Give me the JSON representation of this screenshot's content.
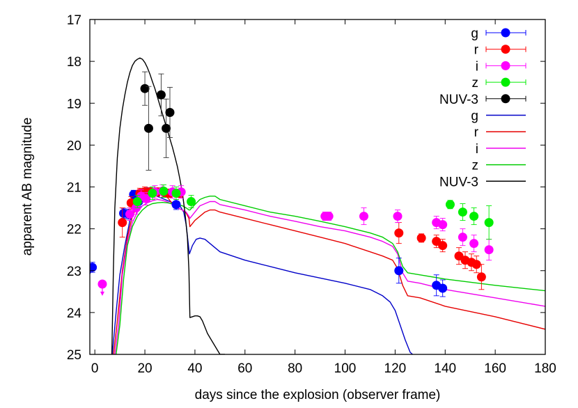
{
  "chart_data": {
    "type": "scatter",
    "title": "",
    "xlabel": "days since the explosion (observer frame)",
    "ylabel": "apparent AB magnitude",
    "xlim": [
      -2,
      180
    ],
    "ylim": [
      25,
      17
    ],
    "y_inverted": true,
    "x_ticks": [
      0,
      20,
      40,
      60,
      80,
      100,
      120,
      140,
      160,
      180
    ],
    "x_tick_labels": [
      "0",
      "20",
      "40",
      "60",
      "80",
      "100",
      "120",
      "140",
      "160",
      "180"
    ],
    "y_ticks": [
      17,
      18,
      19,
      20,
      21,
      22,
      23,
      24,
      25
    ],
    "y_tick_labels": [
      "17",
      "18",
      "19",
      "20",
      "21",
      "22",
      "23",
      "24",
      "25"
    ],
    "grid": false,
    "legend_position": "top-right",
    "colors": {
      "g": "#0000ff",
      "r": "#ff0000",
      "i": "#ff00ff",
      "z": "#00ee00",
      "NUV-3": "#000000",
      "g_line": "#0000c8",
      "r_line": "#e60000",
      "i_line": "#ee00ee",
      "z_line": "#00cc00",
      "nuv_line": "#000000"
    },
    "points": [
      {
        "name": "g",
        "color_key": "g",
        "data": [
          [
            -1,
            22.92,
            0.12
          ],
          [
            11.5,
            21.63,
            0.12
          ],
          [
            13.5,
            21.65,
            0.12
          ],
          [
            15.5,
            21.18,
            0.1
          ],
          [
            17.5,
            21.35,
            0.12
          ],
          [
            19.5,
            21.15,
            0.1
          ],
          [
            21.5,
            21.12,
            0.1
          ],
          [
            32.5,
            21.42,
            0.12
          ],
          [
            121.5,
            23.0,
            0.3
          ],
          [
            136.5,
            23.35,
            0.25
          ],
          [
            139,
            23.42,
            0.2
          ]
        ]
      },
      {
        "name": "r",
        "color_key": "r",
        "data": [
          [
            11,
            21.85,
            0.35
          ],
          [
            14.5,
            21.38,
            0.15
          ],
          [
            18,
            21.15,
            0.12
          ],
          [
            20,
            21.12,
            0.12
          ],
          [
            22,
            21.12,
            0.1
          ],
          [
            25,
            21.12,
            0.1
          ],
          [
            28,
            21.15,
            0.1
          ],
          [
            30,
            21.15,
            0.1
          ],
          [
            34,
            21.15,
            0.1
          ],
          [
            121.5,
            22.1,
            0.25
          ],
          [
            130.5,
            22.22,
            0.1
          ],
          [
            136.5,
            22.3,
            0.15
          ],
          [
            139,
            22.4,
            0.15
          ],
          [
            145.5,
            22.65,
            0.2
          ],
          [
            148,
            22.75,
            0.2
          ],
          [
            150.5,
            22.8,
            0.2
          ],
          [
            152.5,
            22.85,
            0.2
          ],
          [
            154.5,
            23.15,
            0.3
          ]
        ]
      },
      {
        "name": "i",
        "color_key": "i",
        "data": [
          [
            3,
            23.32,
            0.0
          ],
          [
            14,
            21.65,
            0.15
          ],
          [
            16.5,
            21.5,
            0.15
          ],
          [
            18.5,
            21.22,
            0.15
          ],
          [
            20.5,
            21.28,
            0.15
          ],
          [
            24,
            21.12,
            0.15
          ],
          [
            27,
            21.1,
            0.15
          ],
          [
            31,
            21.12,
            0.15
          ],
          [
            34.5,
            21.12,
            0.15
          ],
          [
            92,
            21.7,
            0.1
          ],
          [
            93.5,
            21.7,
            0.1
          ],
          [
            107.5,
            21.7,
            0.2
          ],
          [
            121,
            21.7,
            0.15
          ],
          [
            136.5,
            21.85,
            0.15
          ],
          [
            139,
            21.9,
            0.15
          ],
          [
            147,
            22.2,
            0.2
          ],
          [
            151.5,
            22.35,
            0.2
          ],
          [
            157.5,
            22.5,
            0.25
          ]
        ]
      },
      {
        "name": "z",
        "color_key": "z",
        "data": [
          [
            17,
            21.35,
            0.15
          ],
          [
            23,
            21.15,
            0.15
          ],
          [
            27.5,
            21.1,
            0.15
          ],
          [
            32.5,
            21.15,
            0.15
          ],
          [
            38.5,
            21.35,
            0.15
          ],
          [
            142,
            21.42,
            0.1
          ],
          [
            147,
            21.6,
            0.2
          ],
          [
            151.5,
            21.7,
            0.2
          ],
          [
            157.5,
            21.85,
            0.4
          ]
        ]
      },
      {
        "name": "NUV-3",
        "color_key": "NUV-3",
        "data": [
          [
            20,
            18.65,
            0.4
          ],
          [
            21.5,
            19.6,
            1.0
          ],
          [
            26.5,
            18.8,
            0.5
          ],
          [
            28.5,
            19.6,
            0.7
          ],
          [
            30,
            19.22,
            0.6
          ]
        ]
      }
    ],
    "upper_limits": [
      [
        -2,
        23.05,
        "g"
      ],
      [
        3,
        23.55,
        "i"
      ]
    ],
    "series": [
      {
        "name": "g",
        "color_key": "g_line",
        "x": [
          7,
          8.5,
          10,
          12,
          14,
          16,
          18,
          20,
          22,
          24,
          26,
          28,
          30,
          32,
          34,
          35.5,
          36.5,
          37.6,
          37.8,
          39,
          40.5,
          42,
          44,
          50,
          60,
          80,
          100,
          110,
          115,
          118,
          120,
          122,
          124,
          126,
          127
        ],
        "values": [
          25,
          24.0,
          23.1,
          22.4,
          21.8,
          21.5,
          21.3,
          21.2,
          21.15,
          21.2,
          21.25,
          21.3,
          21.35,
          21.4,
          21.45,
          21.6,
          21.9,
          22.5,
          22.6,
          22.4,
          22.25,
          22.22,
          22.25,
          22.55,
          22.75,
          23.05,
          23.3,
          23.45,
          23.6,
          23.75,
          23.95,
          24.3,
          24.65,
          24.95,
          25
        ]
      },
      {
        "name": "r",
        "color_key": "r_line",
        "x": [
          7.5,
          9,
          11,
          13,
          15,
          17,
          19,
          21,
          23,
          25,
          27,
          29,
          31,
          33,
          35,
          36.5,
          37.6,
          38,
          40,
          42,
          44,
          46,
          48,
          50,
          60,
          70,
          80,
          90,
          100,
          110,
          115,
          119,
          121,
          123,
          125,
          130,
          140,
          160,
          180
        ],
        "values": [
          25,
          24.2,
          23.0,
          22.2,
          21.7,
          21.45,
          21.3,
          21.2,
          21.12,
          21.1,
          21.15,
          21.25,
          21.4,
          21.5,
          21.55,
          21.62,
          21.75,
          21.95,
          21.8,
          21.7,
          21.6,
          21.55,
          21.55,
          21.6,
          21.75,
          21.9,
          22.05,
          22.2,
          22.35,
          22.55,
          22.65,
          22.75,
          22.95,
          23.35,
          23.6,
          23.65,
          23.85,
          24.1,
          24.4
        ]
      },
      {
        "name": "i",
        "color_key": "i_line",
        "x": [
          8,
          9.5,
          11,
          13,
          15,
          17,
          19,
          21,
          23,
          25,
          27,
          29,
          31,
          33,
          35,
          36.5,
          37.6,
          38,
          40,
          42,
          44,
          46,
          48,
          50,
          60,
          70,
          80,
          90,
          100,
          110,
          115,
          119,
          121,
          123,
          125,
          130,
          140,
          160,
          180
        ],
        "values": [
          25,
          24.3,
          23.1,
          22.3,
          21.85,
          21.6,
          21.45,
          21.38,
          21.33,
          21.3,
          21.32,
          21.36,
          21.42,
          21.5,
          21.55,
          21.6,
          21.7,
          21.75,
          21.6,
          21.45,
          21.4,
          21.35,
          21.35,
          21.42,
          21.55,
          21.7,
          21.82,
          21.95,
          22.05,
          22.2,
          22.3,
          22.42,
          22.6,
          23.05,
          23.25,
          23.3,
          23.45,
          23.65,
          23.85
        ]
      },
      {
        "name": "z",
        "color_key": "z_line",
        "x": [
          8.5,
          10,
          11.5,
          13,
          15,
          17,
          19,
          21,
          23,
          25,
          27,
          29,
          31,
          33,
          35,
          36.5,
          37.6,
          38,
          40,
          42,
          44,
          46,
          48,
          50,
          60,
          70,
          80,
          90,
          100,
          110,
          115,
          119,
          121,
          123,
          125,
          130,
          140,
          160,
          180
        ],
        "values": [
          25,
          24.3,
          23.2,
          22.4,
          21.95,
          21.7,
          21.55,
          21.45,
          21.4,
          21.38,
          21.37,
          21.38,
          21.4,
          21.42,
          21.45,
          21.5,
          21.55,
          21.55,
          21.42,
          21.3,
          21.25,
          21.22,
          21.22,
          21.3,
          21.45,
          21.6,
          21.7,
          21.82,
          21.95,
          22.1,
          22.2,
          22.35,
          22.55,
          22.9,
          23.05,
          23.1,
          23.2,
          23.35,
          23.48
        ]
      },
      {
        "name": "NUV-3",
        "color_key": "nuv_line",
        "x": [
          6.8,
          7.4,
          8,
          9,
          10,
          11,
          12,
          13,
          14,
          15,
          16,
          17,
          18,
          19,
          20,
          21,
          22,
          23,
          24,
          25,
          26,
          27,
          28,
          29,
          30,
          31,
          32,
          33,
          34,
          35,
          36,
          37,
          37.6,
          38,
          39,
          40,
          41,
          42,
          43,
          44,
          45,
          46,
          47,
          48,
          49,
          50,
          51,
          52
        ],
        "values": [
          25,
          23.0,
          21.5,
          20.3,
          19.6,
          19.15,
          18.8,
          18.5,
          18.27,
          18.1,
          18.0,
          17.95,
          17.92,
          17.95,
          18.03,
          18.15,
          18.3,
          18.48,
          18.65,
          18.85,
          19.05,
          19.25,
          19.45,
          19.65,
          19.85,
          20.05,
          20.28,
          20.52,
          20.82,
          21.15,
          21.6,
          22.2,
          23.0,
          24.12,
          24.1,
          24.08,
          24.08,
          24.1,
          24.2,
          24.35,
          24.5,
          24.6,
          24.7,
          24.8,
          24.9,
          25,
          25,
          25
        ]
      }
    ],
    "legend": [
      {
        "label": "g",
        "kind": "point",
        "color_key": "g"
      },
      {
        "label": "r",
        "kind": "point",
        "color_key": "r"
      },
      {
        "label": "i",
        "kind": "point",
        "color_key": "i"
      },
      {
        "label": "z",
        "kind": "point",
        "color_key": "z"
      },
      {
        "label": "NUV-3",
        "kind": "point",
        "color_key": "NUV-3"
      },
      {
        "label": "g",
        "kind": "line",
        "color_key": "g_line"
      },
      {
        "label": "r",
        "kind": "line",
        "color_key": "r_line"
      },
      {
        "label": "i",
        "kind": "line",
        "color_key": "i_line"
      },
      {
        "label": "z",
        "kind": "line",
        "color_key": "z_line"
      },
      {
        "label": "NUV-3",
        "kind": "line",
        "color_key": "nuv_line"
      }
    ]
  }
}
